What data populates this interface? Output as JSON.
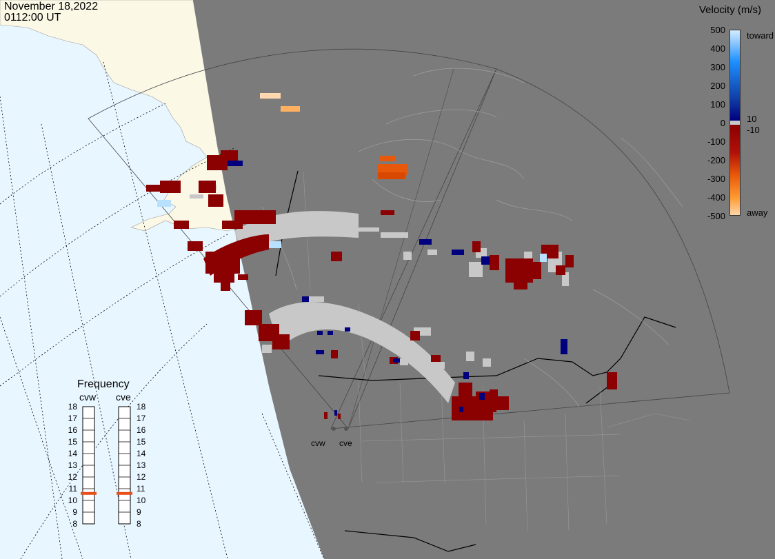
{
  "header": {
    "date": "November 18,2022",
    "time": "0112:00 UT"
  },
  "colorbar": {
    "title": "Velocity (m/s)",
    "ticks": [
      "500",
      "400",
      "300",
      "200",
      "100",
      "0",
      "-100",
      "-200",
      "-300",
      "-400",
      "-500"
    ],
    "label_toward": "toward",
    "label_away": "away",
    "label_pos_threshold": "10",
    "label_neg_threshold": "-10",
    "colors": {
      "toward_high": "#d8eeff",
      "toward_mid": "#1e90ff",
      "toward_low": "#00007f",
      "ground_scatter": "#c8c8c8",
      "away_low": "#8b0000",
      "away_mid": "#e8580a",
      "away_high": "#ffd8b0"
    }
  },
  "frequency_panel": {
    "title": "Frequency",
    "radars": [
      "cvw",
      "cve"
    ],
    "scale": [
      "18",
      "17",
      "16",
      "15",
      "14",
      "13",
      "12",
      "11",
      "10",
      "9",
      "8"
    ],
    "cvw_mhz": 10.6,
    "cve_mhz": 10.6,
    "marker_color": "#e8501a"
  },
  "sites": {
    "cvw": "cvw",
    "cve": "cve"
  },
  "map_colors": {
    "ocean": "#e8f6ff",
    "land_lit": "#fbf8e6",
    "night": "#7b7b7b",
    "borders": "#000000",
    "coast": "#9a9a9a"
  }
}
